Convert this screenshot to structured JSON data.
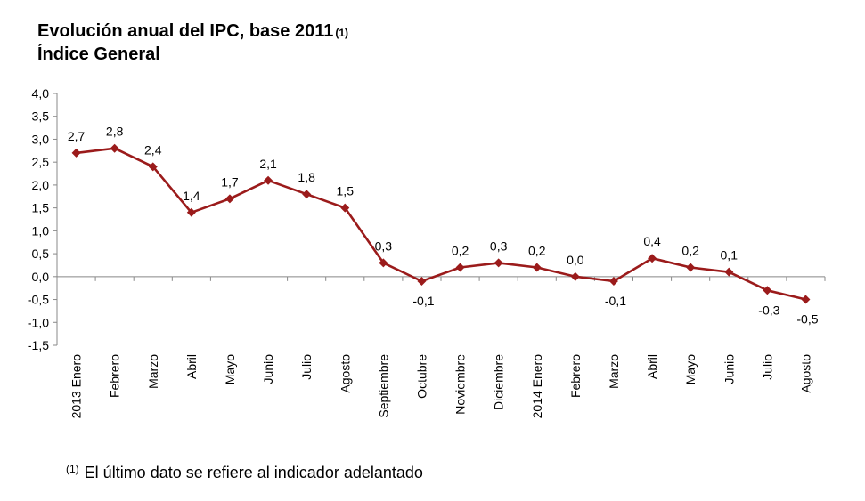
{
  "header": {
    "title": "Evolución anual del IPC, base 2011",
    "title_note": "(1)",
    "subtitle": "Índice General"
  },
  "footnote": {
    "mark": "(1)",
    "text": "El último dato se refiere al indicador adelantado"
  },
  "colors": {
    "series": "#9b1b1b",
    "axis": "#888888"
  },
  "chart_data": {
    "type": "line",
    "categories": [
      "2013 Enero",
      "Febrero",
      "Marzo",
      "Abril",
      "Mayo",
      "Junio",
      "Julio",
      "Agosto",
      "Septiembre",
      "Octubre",
      "Noviembre",
      "Diciembre",
      "2014 Enero",
      "Febrero",
      "Marzo",
      "Abril",
      "Mayo",
      "Junio",
      "Julio",
      "Agosto"
    ],
    "values": [
      2.7,
      2.8,
      2.4,
      1.4,
      1.7,
      2.1,
      1.8,
      1.5,
      0.3,
      -0.1,
      0.2,
      0.3,
      0.2,
      0.0,
      -0.1,
      0.4,
      0.2,
      0.1,
      -0.3,
      -0.5
    ],
    "data_labels": [
      "2,7",
      "2,8",
      "2,4",
      "1,4",
      "1,7",
      "2,1",
      "1,8",
      "1,5",
      "0,3",
      "-0,1",
      "0,2",
      "0,3",
      "0,2",
      "0,0",
      "-0,1",
      "0,4",
      "0,2",
      "0,1",
      "-0,3",
      "-0,5"
    ],
    "y_ticks": [
      "4,0",
      "3,5",
      "3,0",
      "2,5",
      "2,0",
      "1,5",
      "1,0",
      "0,5",
      "0,0",
      "-0,5",
      "-1,0",
      "-1,5"
    ],
    "ylim": [
      -1.5,
      4.0
    ],
    "grid": false,
    "marker": "diamond"
  }
}
